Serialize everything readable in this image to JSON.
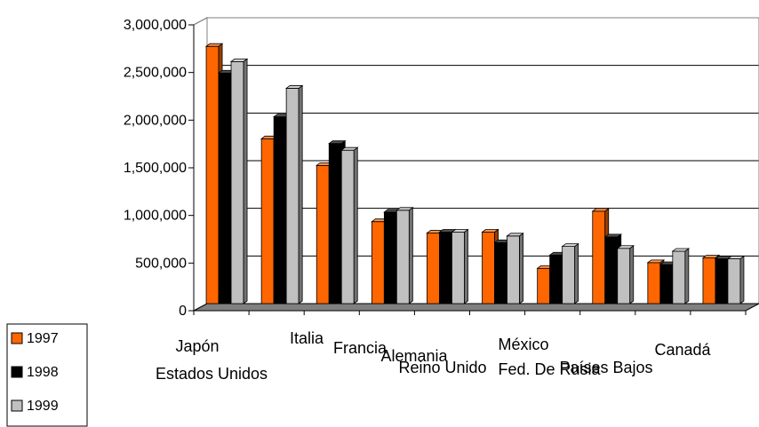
{
  "chart_data": {
    "type": "bar",
    "categories": [
      "Japón",
      "Estados Unidos",
      "Italia",
      "Francia",
      "Alemania",
      "Reino Unido",
      "México",
      "Fed. De Rusia",
      "Países Bajos",
      "Canadá"
    ],
    "series": [
      {
        "name": "1997",
        "color": "#FF6600",
        "values": [
          2700000,
          1730000,
          1450000,
          860000,
          740000,
          750000,
          370000,
          970000,
          430000,
          480000
        ]
      },
      {
        "name": "1998",
        "color": "#000000",
        "values": [
          2420000,
          1960000,
          1680000,
          960000,
          750000,
          640000,
          510000,
          700000,
          410000,
          470000
        ]
      },
      {
        "name": "1999",
        "color": "#C0C0C0",
        "values": [
          2540000,
          2260000,
          1610000,
          980000,
          750000,
          710000,
          600000,
          580000,
          550000,
          470000
        ]
      }
    ],
    "y_ticks": [
      "0",
      "500,000",
      "1,000,000",
      "1,500,000",
      "2,000,000",
      "2,500,000",
      "3,000,000"
    ],
    "ylim": [
      0,
      3000000
    ],
    "grid": true,
    "legend": "bottom-left"
  }
}
